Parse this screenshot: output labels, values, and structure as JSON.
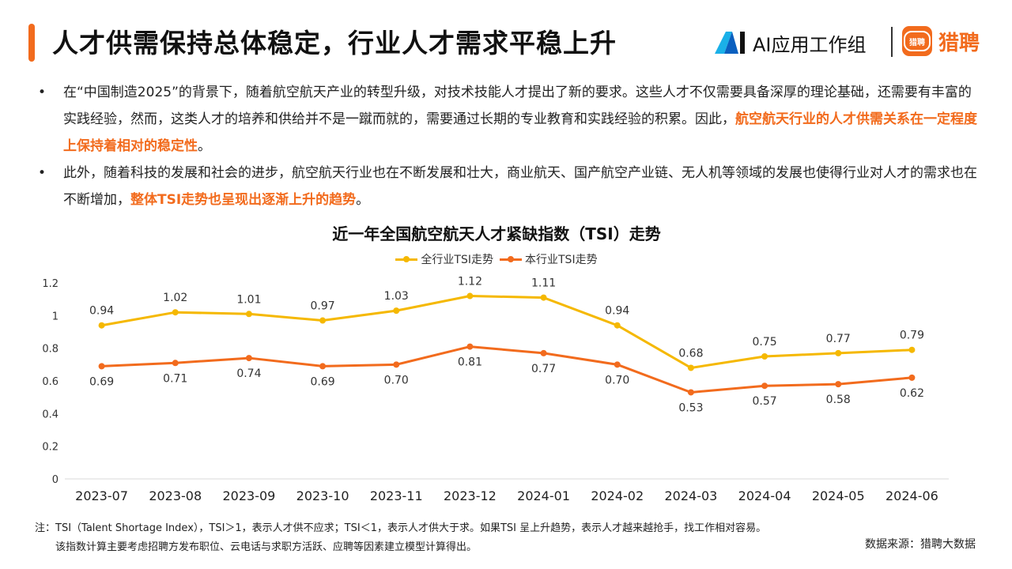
{
  "header": {
    "title": "人才供需保持总体稳定，行业人才需求平稳上升",
    "logo_ai_text": "AI应用工作组",
    "logo_liepin_badge": "猎聘",
    "logo_liepin_text": "猎聘"
  },
  "bullets": [
    {
      "marker": "•",
      "text": "在“中国制造2025”的背景下，随着航空航天产业的转型升级，对技术技能人才提出了新的要求。这些人才不仅需要具备深厚的理论基础，还需要有丰富的实践经验，然而，这类人才的培养和供给并不是一蹴而就的，需要通过长期的专业教育和实践经验的积累。因此，",
      "highlight": "航空航天行业的人才供需关系在一定程度上保持着相对的稳定性",
      "tail": "。"
    },
    {
      "marker": "•",
      "text": "此外，随着科技的发展和社会的进步，航空航天行业也在不断发展和壮大，商业航天、国产航空产业链、无人机等领域的发展也使得行业对人才的需求也在不断增加，",
      "highlight": "整体TSI走势也呈现出逐渐上升的趋势",
      "tail": "。"
    }
  ],
  "chart_data": {
    "type": "line",
    "title": "近一年全国航空航天人才紧缺指数（TSI）走势",
    "categories": [
      "2023-07",
      "2023-08",
      "2023-09",
      "2023-10",
      "2023-11",
      "2023-12",
      "2024-01",
      "2024-02",
      "2024-03",
      "2024-04",
      "2024-05",
      "2024-06"
    ],
    "series": [
      {
        "name": "全行业TSI走势",
        "color": "#f5b800",
        "values": [
          0.94,
          1.02,
          1.01,
          0.97,
          1.03,
          1.12,
          1.11,
          0.94,
          0.68,
          0.75,
          0.77,
          0.79
        ],
        "labels": [
          "0.94",
          "1.02",
          "1.01",
          "0.97",
          "1.03",
          "1.12",
          "1.11",
          "0.94",
          "0.68",
          "0.75",
          "0.77",
          "0.79"
        ]
      },
      {
        "name": "本行业TSI走势",
        "color": "#f26b1d",
        "values": [
          0.69,
          0.71,
          0.74,
          0.69,
          0.7,
          0.81,
          0.77,
          0.7,
          0.53,
          0.57,
          0.58,
          0.62
        ],
        "labels": [
          "0.69",
          "0.71",
          "0.74",
          "0.69",
          "0.70",
          "0.81",
          "0.77",
          "0.70",
          "0.53",
          "0.57",
          "0.58",
          "0.62"
        ]
      }
    ],
    "yticks": [
      "0",
      "0.2",
      "0.4",
      "0.6",
      "0.8",
      "1",
      "1.2"
    ],
    "ylim": [
      0,
      1.2
    ],
    "legend_position": "top",
    "grid": false
  },
  "footnote": {
    "line1": "注：TSI（Talent Shortage Index），TSI＞1，表示人才供不应求；TSI＜1，表示人才供大于求。如果TSI 呈上升趋势，表示人才越来越抢手，找工作相对容易。",
    "line2": "该指数计算主要考虑招聘方发布职位、云电话与求职方活跃、应聘等因素建立模型计算得出。"
  },
  "source": "数据来源：猎聘大数据"
}
